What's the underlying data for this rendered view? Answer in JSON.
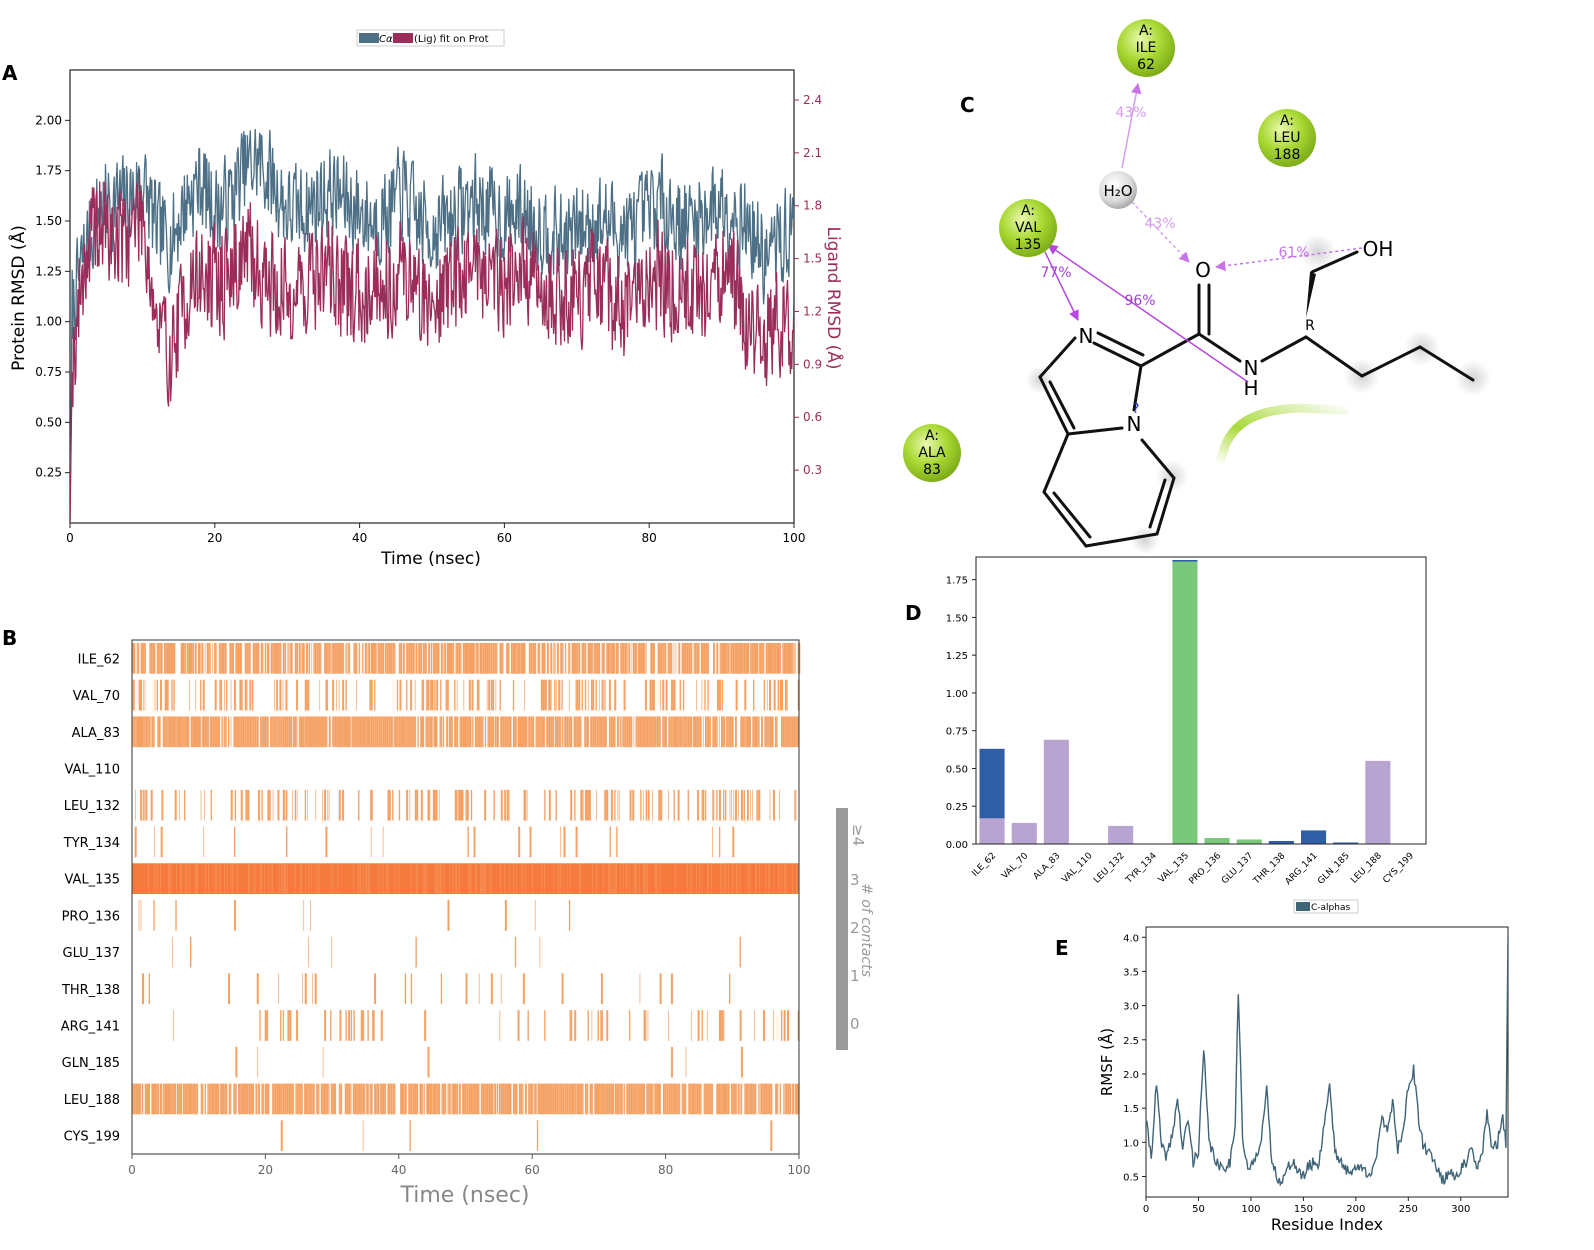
{
  "panels": {
    "A": "A",
    "B": "B",
    "C": "C",
    "D": "D",
    "E": "E"
  },
  "colors": {
    "protein": "#4d7086",
    "ligand": "#9b2d5a",
    "contact": "#f5a164",
    "contact_strong": "#f47a3e",
    "hbond": "#7ac97a",
    "water": "#2f5da6",
    "hydrophobic": "#b7a4d1",
    "rmsf": "#3f6478",
    "residue_green": "#aedb3c",
    "arrow": "#c774e8"
  },
  "chart_data": [
    {
      "id": "A",
      "type": "line",
      "legend": {
        "protein": "Cα",
        "ligand": "(Lig) fit on Prot",
        "placement": "top-center"
      },
      "xlabel": "Time (nsec)",
      "ylabel": "Protein RMSD (Å)",
      "y2label": "Ligand RMSD (Å)",
      "xlim": [
        0,
        100
      ],
      "ylim": [
        0.0,
        2.25
      ],
      "y2lim": [
        0.0,
        2.57
      ],
      "xticks": [
        0,
        20,
        40,
        60,
        80,
        100
      ],
      "yticks": [
        0.25,
        0.5,
        0.75,
        1.0,
        1.25,
        1.5,
        1.75,
        2.0
      ],
      "ytick_labels": [
        "0.25",
        "0.50",
        "0.75",
        "1.00",
        "1.25",
        "1.50",
        "1.75",
        "2.00"
      ],
      "y2ticks": [
        0.3,
        0.6,
        0.9,
        1.2,
        1.5,
        1.8,
        2.1,
        2.4
      ],
      "y2tick_labels": [
        "0.3",
        "0.6",
        "0.9",
        "1.2",
        "1.5",
        "1.8",
        "2.1",
        "2.4"
      ],
      "series": [
        {
          "name": "Cα",
          "x": [
            0,
            2,
            4,
            6,
            8,
            10,
            12,
            14,
            16,
            18,
            20,
            22,
            24,
            26,
            28,
            30,
            32,
            34,
            36,
            38,
            40,
            42,
            44,
            46,
            48,
            50,
            52,
            54,
            56,
            58,
            60,
            62,
            64,
            66,
            68,
            70,
            72,
            74,
            76,
            78,
            80,
            82,
            84,
            86,
            88,
            90,
            92,
            94,
            96,
            98,
            100
          ],
          "values": [
            1.0,
            1.35,
            1.55,
            1.6,
            1.6,
            1.7,
            1.45,
            1.4,
            1.6,
            1.7,
            1.55,
            1.6,
            1.75,
            1.8,
            1.7,
            1.55,
            1.55,
            1.6,
            1.65,
            1.6,
            1.55,
            1.5,
            1.55,
            1.65,
            1.5,
            1.45,
            1.5,
            1.55,
            1.6,
            1.55,
            1.5,
            1.55,
            1.5,
            1.45,
            1.4,
            1.45,
            1.5,
            1.5,
            1.45,
            1.45,
            1.55,
            1.6,
            1.5,
            1.5,
            1.55,
            1.6,
            1.55,
            1.45,
            1.3,
            1.4,
            1.45
          ]
        },
        {
          "name": "(Lig) fit on Prot",
          "x": [
            0,
            2,
            4,
            6,
            8,
            10,
            12,
            14,
            16,
            18,
            20,
            22,
            24,
            26,
            28,
            30,
            32,
            34,
            36,
            38,
            40,
            42,
            44,
            46,
            48,
            50,
            52,
            54,
            56,
            58,
            60,
            62,
            64,
            66,
            68,
            70,
            72,
            74,
            76,
            78,
            80,
            82,
            84,
            86,
            88,
            90,
            92,
            94,
            96,
            98,
            100
          ],
          "values": [
            0.8,
            1.5,
            1.7,
            1.6,
            1.65,
            1.8,
            1.1,
            0.95,
            1.3,
            1.4,
            1.35,
            1.4,
            1.55,
            1.45,
            1.35,
            1.3,
            1.35,
            1.4,
            1.45,
            1.3,
            1.3,
            1.4,
            1.35,
            1.45,
            1.3,
            1.25,
            1.35,
            1.4,
            1.5,
            1.4,
            1.4,
            1.45,
            1.35,
            1.3,
            1.3,
            1.3,
            1.35,
            1.3,
            1.2,
            1.25,
            1.4,
            1.4,
            1.3,
            1.35,
            1.3,
            1.4,
            1.3,
            1.1,
            1.05,
            1.1,
            1.15
          ]
        }
      ]
    },
    {
      "id": "B",
      "type": "heatmap",
      "xlabel": "Time (nsec)",
      "xlim": [
        0,
        100
      ],
      "xticks": [
        0,
        20,
        40,
        60,
        80,
        100
      ],
      "colorbar_label": "# of contacts",
      "colorbar_ticks": [
        "0",
        "1",
        "2",
        "3",
        "≥4"
      ],
      "rows": [
        {
          "label": "ILE_62",
          "density": 0.75,
          "strong": false
        },
        {
          "label": "VAL_70",
          "density": 0.25,
          "strong": false
        },
        {
          "label": "ALA_83",
          "density": 0.85,
          "strong": false
        },
        {
          "label": "VAL_110",
          "density": 0.0,
          "strong": false
        },
        {
          "label": "LEU_132",
          "density": 0.22,
          "strong": false
        },
        {
          "label": "TYR_134",
          "density": 0.02,
          "strong": false
        },
        {
          "label": "VAL_135",
          "density": 1.0,
          "strong": true
        },
        {
          "label": "PRO_136",
          "density": 0.05,
          "strong": false
        },
        {
          "label": "GLU_137",
          "density": 0.05,
          "strong": false
        },
        {
          "label": "THR_138",
          "density": 0.03,
          "strong": false
        },
        {
          "label": "ARG_141",
          "density": 0.15,
          "strong": false
        },
        {
          "label": "GLN_185",
          "density": 0.01,
          "strong": false
        },
        {
          "label": "LEU_188",
          "density": 0.85,
          "strong": false
        },
        {
          "label": "CYS_199",
          "density": 0.005,
          "strong": false
        }
      ]
    },
    {
      "id": "D",
      "type": "bar",
      "ylim": [
        0,
        1.9
      ],
      "yticks": [
        0.0,
        0.25,
        0.5,
        0.75,
        1.0,
        1.25,
        1.5,
        1.75
      ],
      "ytick_labels": [
        "0.00",
        "0.25",
        "0.50",
        "0.75",
        "1.00",
        "1.25",
        "1.50",
        "1.75"
      ],
      "categories": [
        "ILE_62",
        "VAL_70",
        "ALA_83",
        "VAL_110",
        "LEU_132",
        "TYR_134",
        "VAL_135",
        "PRO_136",
        "GLU_137",
        "THR_138",
        "ARG_141",
        "GLN_185",
        "LEU_188",
        "CYS_199"
      ],
      "series": [
        {
          "key": "hydrophobic",
          "values": [
            0.17,
            0.14,
            0.69,
            0.0,
            0.12,
            0.0,
            0.0,
            0.0,
            0.0,
            0.0,
            0.0,
            0.0,
            0.55,
            0.0
          ]
        },
        {
          "key": "hbond",
          "values": [
            0.0,
            0.0,
            0.0,
            0.0,
            0.0,
            0.0,
            1.87,
            0.04,
            0.03,
            0.0,
            0.0,
            0.0,
            0.0,
            0.0
          ]
        },
        {
          "key": "water",
          "values": [
            0.46,
            0.0,
            0.0,
            0.0,
            0.0,
            0.0,
            0.01,
            0.0,
            0.0,
            0.02,
            0.09,
            0.01,
            0.0,
            0.0
          ]
        }
      ]
    },
    {
      "id": "E",
      "type": "line",
      "legend": "C-alphas",
      "xlabel": "Residue Index",
      "ylabel": "RMSF (Å)",
      "xlim": [
        0,
        345
      ],
      "ylim": [
        0.2,
        4.15
      ],
      "xticks": [
        0,
        50,
        100,
        150,
        200,
        250,
        300
      ],
      "yticks": [
        0.5,
        1.0,
        1.5,
        2.0,
        2.5,
        3.0,
        3.5,
        4.0
      ],
      "ytick_labels": [
        "0.5",
        "1.0",
        "1.5",
        "2.0",
        "2.5",
        "3.0",
        "3.5",
        "4.0"
      ],
      "series": [
        {
          "name": "C-alphas",
          "x": [
            0,
            5,
            10,
            15,
            20,
            25,
            30,
            35,
            40,
            45,
            50,
            55,
            60,
            65,
            70,
            75,
            80,
            85,
            88,
            92,
            95,
            100,
            105,
            110,
            115,
            120,
            125,
            130,
            135,
            140,
            145,
            150,
            155,
            160,
            165,
            170,
            175,
            180,
            185,
            190,
            195,
            200,
            205,
            210,
            215,
            220,
            225,
            230,
            235,
            240,
            245,
            250,
            255,
            260,
            265,
            270,
            275,
            280,
            285,
            290,
            295,
            300,
            305,
            310,
            315,
            320,
            325,
            330,
            335,
            340,
            343,
            345
          ],
          "values": [
            1.3,
            0.8,
            1.85,
            0.9,
            0.8,
            1.1,
            1.65,
            0.9,
            1.35,
            0.7,
            0.9,
            2.35,
            1.0,
            0.8,
            0.6,
            0.65,
            0.7,
            1.3,
            3.25,
            1.1,
            0.7,
            0.6,
            0.8,
            1.1,
            1.75,
            0.7,
            0.5,
            0.45,
            0.6,
            0.75,
            0.55,
            0.5,
            0.65,
            0.7,
            0.7,
            1.3,
            1.85,
            0.9,
            0.7,
            0.6,
            0.6,
            0.6,
            0.65,
            0.55,
            0.6,
            0.8,
            1.35,
            1.2,
            1.6,
            0.9,
            1.2,
            1.8,
            2.05,
            1.3,
            0.9,
            0.85,
            0.75,
            0.5,
            0.45,
            0.6,
            0.5,
            0.6,
            0.7,
            0.9,
            0.6,
            0.8,
            1.45,
            0.85,
            1.0,
            1.4,
            1.0,
            4.0
          ]
        }
      ]
    }
  ],
  "interaction_diagram": {
    "residues": [
      {
        "chain": "A:",
        "name": "ILE",
        "num": "62"
      },
      {
        "chain": "A:",
        "name": "LEU",
        "num": "188"
      },
      {
        "chain": "A:",
        "name": "VAL",
        "num": "135"
      },
      {
        "chain": "A:",
        "name": "ALA",
        "num": "83"
      }
    ],
    "water_label": "H₂O",
    "percentages": [
      "43%",
      "43%",
      "61%",
      "77%",
      "96%"
    ],
    "atoms": [
      "O",
      "OH",
      "N",
      "N",
      "H",
      "N",
      "R",
      "?"
    ]
  }
}
